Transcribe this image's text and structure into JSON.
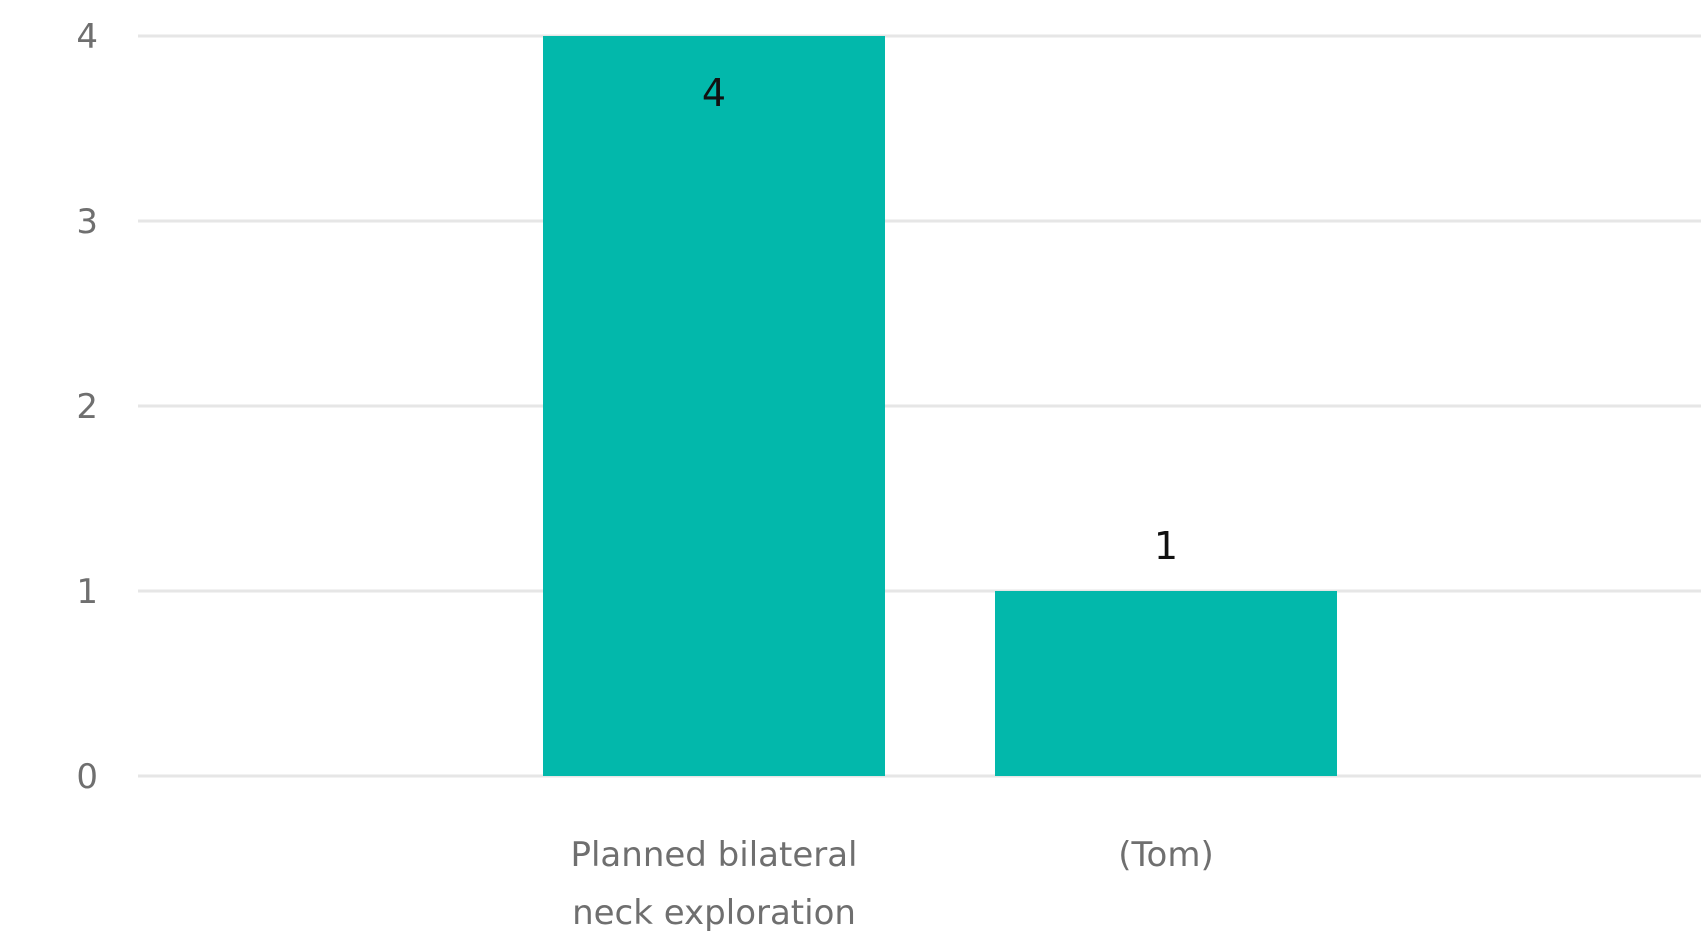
{
  "chart_data": {
    "type": "bar",
    "categories": [
      [
        "Planned bilateral",
        "neck exploration"
      ],
      [
        "(Tom)"
      ]
    ],
    "values": [
      4,
      1
    ],
    "data_labels": [
      "4",
      "1"
    ],
    "ylim": [
      0,
      4
    ],
    "yticks": [
      0,
      1,
      2,
      3,
      4
    ],
    "title": "",
    "xlabel": "",
    "ylabel": "",
    "grid": true,
    "legend": "none",
    "colors": {
      "bar": "#02B8AB",
      "grid": "#E6E6E6",
      "axis_text": "#6F6F6F",
      "data_label": "#111111"
    }
  }
}
